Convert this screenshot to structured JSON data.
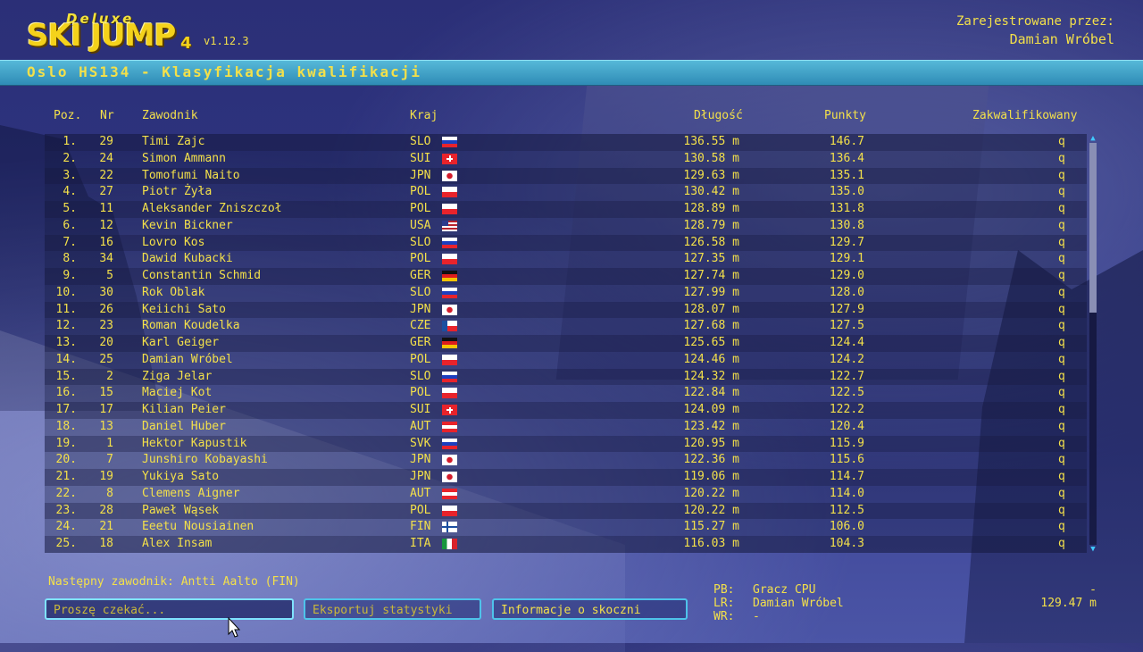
{
  "header": {
    "logo_deluxe": "Deluxe",
    "logo_main": "SKI JUMP",
    "logo_num": "4",
    "version": "v1.12.3",
    "registered_label": "Zarejestrowane przez:",
    "registered_name": "Damian Wróbel",
    "title": "Oslo HS134 - Klasyfikacja kwalifikacji"
  },
  "table": {
    "headers": {
      "pos": "Poz.",
      "nr": "Nr",
      "athlete": "Zawodnik",
      "country": "Kraj",
      "distance": "Długość",
      "points": "Punkty",
      "qualified": "Zakwalifikowany"
    },
    "rows": [
      {
        "pos": "1.",
        "nr": "29",
        "name": "Timi Zajc",
        "country": "SLO",
        "distance": "136.55 m",
        "points": "146.7",
        "q": "q"
      },
      {
        "pos": "2.",
        "nr": "24",
        "name": "Simon Ammann",
        "country": "SUI",
        "distance": "130.58 m",
        "points": "136.4",
        "q": "q"
      },
      {
        "pos": "3.",
        "nr": "22",
        "name": "Tomofumi Naito",
        "country": "JPN",
        "distance": "129.63 m",
        "points": "135.1",
        "q": "q"
      },
      {
        "pos": "4.",
        "nr": "27",
        "name": "Piotr Żyła",
        "country": "POL",
        "distance": "130.42 m",
        "points": "135.0",
        "q": "q"
      },
      {
        "pos": "5.",
        "nr": "11",
        "name": "Aleksander Zniszczoł",
        "country": "POL",
        "distance": "128.89 m",
        "points": "131.8",
        "q": "q"
      },
      {
        "pos": "6.",
        "nr": "12",
        "name": "Kevin Bickner",
        "country": "USA",
        "distance": "128.79 m",
        "points": "130.8",
        "q": "q"
      },
      {
        "pos": "7.",
        "nr": "16",
        "name": "Lovro Kos",
        "country": "SLO",
        "distance": "126.58 m",
        "points": "129.7",
        "q": "q"
      },
      {
        "pos": "8.",
        "nr": "34",
        "name": "Dawid Kubacki",
        "country": "POL",
        "distance": "127.35 m",
        "points": "129.1",
        "q": "q"
      },
      {
        "pos": "9.",
        "nr": "5",
        "name": "Constantin Schmid",
        "country": "GER",
        "distance": "127.74 m",
        "points": "129.0",
        "q": "q"
      },
      {
        "pos": "10.",
        "nr": "30",
        "name": "Rok Oblak",
        "country": "SLO",
        "distance": "127.99 m",
        "points": "128.0",
        "q": "q"
      },
      {
        "pos": "11.",
        "nr": "26",
        "name": "Keiichi Sato",
        "country": "JPN",
        "distance": "128.07 m",
        "points": "127.9",
        "q": "q"
      },
      {
        "pos": "12.",
        "nr": "23",
        "name": "Roman Koudelka",
        "country": "CZE",
        "distance": "127.68 m",
        "points": "127.5",
        "q": "q"
      },
      {
        "pos": "13.",
        "nr": "20",
        "name": "Karl Geiger",
        "country": "GER",
        "distance": "125.65 m",
        "points": "124.4",
        "q": "q"
      },
      {
        "pos": "14.",
        "nr": "25",
        "name": "Damian Wróbel",
        "country": "POL",
        "distance": "124.46 m",
        "points": "124.2",
        "q": "q"
      },
      {
        "pos": "15.",
        "nr": "2",
        "name": "Ziga Jelar",
        "country": "SLO",
        "distance": "124.32 m",
        "points": "122.7",
        "q": "q"
      },
      {
        "pos": "16.",
        "nr": "15",
        "name": "Maciej Kot",
        "country": "POL",
        "distance": "122.84 m",
        "points": "122.5",
        "q": "q"
      },
      {
        "pos": "17.",
        "nr": "17",
        "name": "Kilian Peier",
        "country": "SUI",
        "distance": "124.09 m",
        "points": "122.2",
        "q": "q"
      },
      {
        "pos": "18.",
        "nr": "13",
        "name": "Daniel Huber",
        "country": "AUT",
        "distance": "123.42 m",
        "points": "120.4",
        "q": "q"
      },
      {
        "pos": "19.",
        "nr": "1",
        "name": "Hektor Kapustik",
        "country": "SVK",
        "distance": "120.95 m",
        "points": "115.9",
        "q": "q"
      },
      {
        "pos": "20.",
        "nr": "7",
        "name": "Junshiro Kobayashi",
        "country": "JPN",
        "distance": "122.36 m",
        "points": "115.6",
        "q": "q"
      },
      {
        "pos": "21.",
        "nr": "19",
        "name": "Yukiya Sato",
        "country": "JPN",
        "distance": "119.06 m",
        "points": "114.7",
        "q": "q"
      },
      {
        "pos": "22.",
        "nr": "8",
        "name": "Clemens Aigner",
        "country": "AUT",
        "distance": "120.22 m",
        "points": "114.0",
        "q": "q"
      },
      {
        "pos": "23.",
        "nr": "28",
        "name": "Paweł Wąsek",
        "country": "POL",
        "distance": "120.22 m",
        "points": "112.5",
        "q": "q"
      },
      {
        "pos": "24.",
        "nr": "21",
        "name": "Eeetu Nousiainen",
        "country": "FIN",
        "distance": "115.27 m",
        "points": "106.0",
        "q": "q"
      },
      {
        "pos": "25.",
        "nr": "18",
        "name": "Alex Insam",
        "country": "ITA",
        "distance": "116.03 m",
        "points": "104.3",
        "q": "q"
      }
    ]
  },
  "flag_colors": {
    "SLO": [
      "#ffffff",
      "#1c3fbf",
      "#e8232b"
    ],
    "SUI": [
      "#e8232b"
    ],
    "JPN": [
      "#ffffff"
    ],
    "POL": [
      "#ffffff",
      "#e8232b"
    ],
    "USA": [
      "#b8242e",
      "#ffffff",
      "#2d3a8c"
    ],
    "GER": [
      "#111111",
      "#dd1d1d",
      "#f5c400"
    ],
    "CZE": [
      "#ffffff",
      "#e8232b",
      "#1c4fa0"
    ],
    "AUT": [
      "#e8232b",
      "#ffffff",
      "#e8232b"
    ],
    "SVK": [
      "#ffffff",
      "#1c3fbf",
      "#e8232b"
    ],
    "FIN": [
      "#ffffff",
      "#1c4fa0"
    ],
    "ITA": [
      "#17963e",
      "#ffffff",
      "#d8222b"
    ]
  },
  "footer": {
    "next_competitor": "Następny zawodnik: Antti Aalto (FIN)",
    "btn_wait": "Proszę czekać...",
    "btn_export": "Eksportuj statystyki",
    "btn_info": "Informacje o skoczni",
    "pb_label": "PB:",
    "pb_value": "Gracz CPU",
    "lr_label": "LR:",
    "lr_value": "Damian Wróbel",
    "wr_label": "WR:",
    "wr_value": "-",
    "pb_right": "-",
    "lr_right": "129.47 m"
  },
  "scrollbar": {
    "up": "▲",
    "down": "▼",
    "position": 0.0
  }
}
